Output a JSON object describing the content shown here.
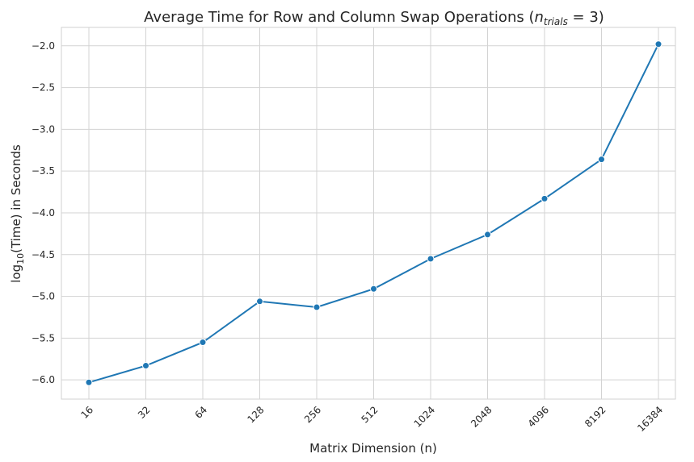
{
  "chart_data": {
    "type": "line",
    "title": {
      "text": "Average Time for Row and Column Swap Operations (",
      "math_n": "n",
      "math_sub": "trials",
      "math_eq": " = 3)"
    },
    "xlabel": "Matrix Dimension (n)",
    "ylabel": {
      "prefix": "log",
      "sub": "10",
      "suffix": "(Time) in Seconds"
    },
    "categories": [
      "16",
      "32",
      "64",
      "128",
      "256",
      "512",
      "1024",
      "2048",
      "4096",
      "8192",
      "16384"
    ],
    "series": [
      {
        "values": [
          -6.03,
          -5.83,
          -5.55,
          -5.06,
          -5.13,
          -4.91,
          -4.55,
          -4.26,
          -3.83,
          -3.36,
          -1.98
        ],
        "color": "#1f77b4"
      }
    ],
    "yticks": [
      "-6.0",
      "-5.5",
      "-5.0",
      "-4.5",
      "-4.0",
      "-3.5",
      "-3.0",
      "-2.5",
      "-2.0"
    ],
    "ylim": [
      -6.23,
      -1.78
    ],
    "grid": true,
    "xtick_rotation": -45
  }
}
